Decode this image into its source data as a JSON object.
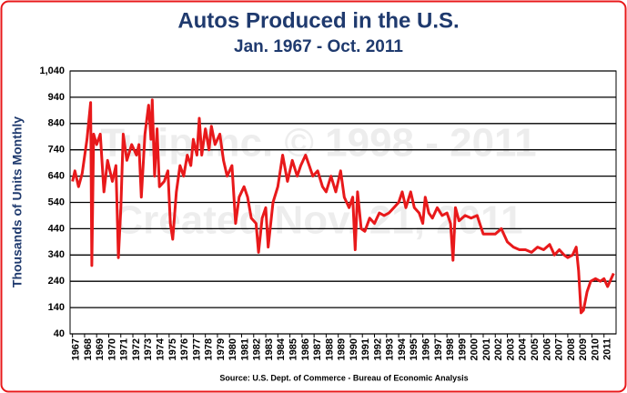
{
  "chart_data": {
    "type": "line",
    "title": "Autos Produced in the U.S.",
    "subtitle": "Jan. 1967 - Oct. 2011",
    "y_label": "Thousands of Units Monthly",
    "source": "Source: U.S. Dept. of Commerce - Bureau of Economic Analysis",
    "watermark": [
      "Tulip Inc. © 1998 - 2011",
      "Created Nov. 21, 2011"
    ],
    "grid": true,
    "xlim": [
      1966.8,
      2012
    ],
    "ylim": [
      40,
      1040
    ],
    "yticks": [
      40,
      140,
      240,
      340,
      440,
      540,
      640,
      740,
      840,
      940,
      {
        "value": 1040,
        "label": "1,040"
      }
    ],
    "xticks": [
      1967,
      1968,
      1969,
      1970,
      1971,
      1972,
      1973,
      1974,
      1975,
      1976,
      1977,
      1978,
      1979,
      1980,
      1981,
      1982,
      1983,
      1984,
      1985,
      1986,
      1987,
      1988,
      1989,
      1990,
      1991,
      1992,
      1993,
      1994,
      1995,
      1996,
      1997,
      1998,
      1999,
      2000,
      2001,
      2002,
      2003,
      2004,
      2005,
      2006,
      2007,
      2008,
      2009,
      2010,
      2011
    ],
    "x": [
      1967.0,
      1967.2,
      1967.5,
      1967.8,
      1968.2,
      1968.5,
      1968.6,
      1968.75,
      1969.0,
      1969.3,
      1969.6,
      1969.9,
      1970.3,
      1970.6,
      1970.8,
      1971.0,
      1971.2,
      1971.5,
      1971.9,
      1972.3,
      1972.5,
      1972.7,
      1973.0,
      1973.3,
      1973.5,
      1973.6,
      1973.8,
      1974.0,
      1974.2,
      1974.6,
      1974.9,
      1975.1,
      1975.3,
      1975.6,
      1975.9,
      1976.2,
      1976.5,
      1976.8,
      1977.0,
      1977.3,
      1977.5,
      1977.7,
      1978.0,
      1978.3,
      1978.5,
      1978.8,
      1979.2,
      1979.5,
      1979.8,
      1980.2,
      1980.5,
      1980.8,
      1981.2,
      1981.5,
      1981.8,
      1982.2,
      1982.4,
      1982.7,
      1983.0,
      1983.2,
      1983.6,
      1984.0,
      1984.4,
      1984.8,
      1985.2,
      1985.6,
      1985.9,
      1986.3,
      1986.6,
      1986.9,
      1987.3,
      1987.7,
      1988.0,
      1988.4,
      1988.8,
      1989.2,
      1989.5,
      1989.9,
      1990.2,
      1990.4,
      1990.6,
      1990.9,
      1991.2,
      1991.6,
      1992.0,
      1992.4,
      1992.8,
      1993.2,
      1993.6,
      1994.0,
      1994.3,
      1994.6,
      1995.0,
      1995.3,
      1995.7,
      1996.0,
      1996.2,
      1996.5,
      1996.8,
      1997.2,
      1997.6,
      1998.0,
      1998.3,
      1998.5,
      1998.7,
      1999.0,
      1999.5,
      2000.0,
      2000.5,
      2001.0,
      2001.5,
      2002.0,
      2002.5,
      2003.0,
      2003.5,
      2004.0,
      2004.5,
      2005.0,
      2005.5,
      2006.0,
      2006.5,
      2006.9,
      2007.3,
      2007.7,
      2008.0,
      2008.4,
      2008.7,
      2008.9,
      2009.1,
      2009.3,
      2009.6,
      2009.9,
      2010.3,
      2010.7,
      2011.0,
      2011.3,
      2011.6,
      2011.8
    ],
    "series": [
      {
        "color": "#e8191b",
        "values": [
          620,
          660,
          600,
          650,
          780,
          920,
          300,
          800,
          760,
          800,
          580,
          700,
          620,
          680,
          330,
          520,
          800,
          700,
          760,
          720,
          760,
          560,
          800,
          910,
          780,
          930,
          640,
          820,
          600,
          620,
          660,
          460,
          400,
          580,
          680,
          640,
          720,
          680,
          780,
          720,
          860,
          720,
          820,
          740,
          830,
          760,
          800,
          700,
          640,
          680,
          460,
          560,
          600,
          560,
          480,
          460,
          350,
          480,
          520,
          370,
          540,
          600,
          720,
          620,
          700,
          640,
          680,
          720,
          680,
          640,
          660,
          600,
          580,
          640,
          580,
          660,
          560,
          520,
          560,
          360,
          580,
          440,
          430,
          480,
          460,
          500,
          490,
          500,
          520,
          540,
          580,
          520,
          580,
          520,
          500,
          460,
          560,
          500,
          480,
          520,
          490,
          500,
          460,
          320,
          520,
          470,
          490,
          480,
          490,
          420,
          420,
          420,
          440,
          390,
          370,
          360,
          360,
          350,
          370,
          360,
          380,
          340,
          360,
          340,
          330,
          340,
          370,
          280,
          120,
          130,
          200,
          240,
          250,
          240,
          250,
          220,
          250,
          270
        ]
      }
    ]
  }
}
